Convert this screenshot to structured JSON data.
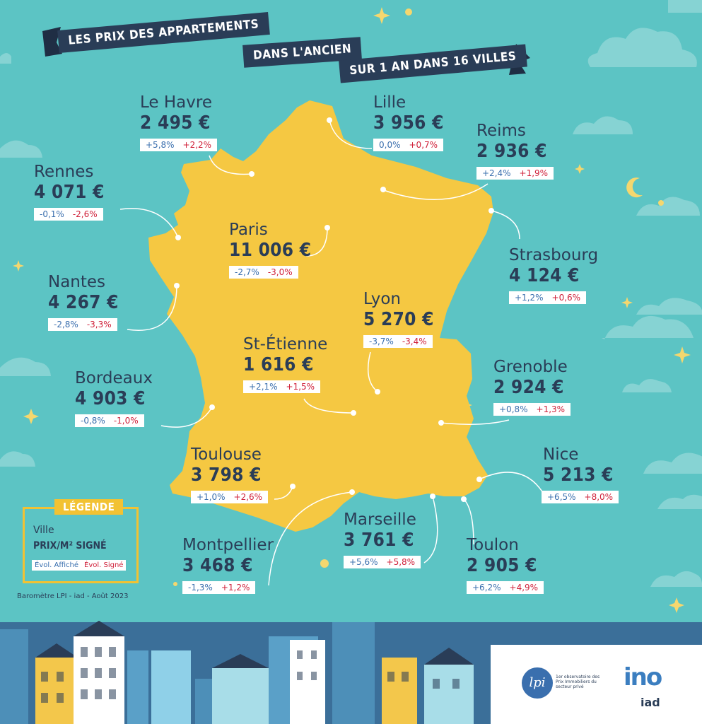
{
  "title": {
    "line1": "LES PRIX DES APPARTEMENTS",
    "line2": "DANS L'ANCIEN",
    "line3": "SUR 1 AN DANS 16 VILLES"
  },
  "cities": [
    {
      "name": "Le Havre",
      "price": "2 495 €",
      "evol_affiche": "+5,8%",
      "evol_signe": "+2,2%"
    },
    {
      "name": "Lille",
      "price": "3 956 €",
      "evol_affiche": "0,0%",
      "evol_signe": "+0,7%"
    },
    {
      "name": "Reims",
      "price": "2 936 €",
      "evol_affiche": "+2,4%",
      "evol_signe": "+1,9%"
    },
    {
      "name": "Rennes",
      "price": "4 071 €",
      "evol_affiche": "-0,1%",
      "evol_signe": "-2,6%"
    },
    {
      "name": "Paris",
      "price": "11 006 €",
      "evol_affiche": "-2,7%",
      "evol_signe": "-3,0%"
    },
    {
      "name": "Strasbourg",
      "price": "4 124 €",
      "evol_affiche": "+1,2%",
      "evol_signe": "+0,6%"
    },
    {
      "name": "Nantes",
      "price": "4 267 €",
      "evol_affiche": "-2,8%",
      "evol_signe": "-3,3%"
    },
    {
      "name": "Lyon",
      "price": "5 270 €",
      "evol_affiche": "-3,7%",
      "evol_signe": "-3,4%"
    },
    {
      "name": "St-Étienne",
      "price": "1 616 €",
      "evol_affiche": "+2,1%",
      "evol_signe": "+1,5%"
    },
    {
      "name": "Bordeaux",
      "price": "4 903 €",
      "evol_affiche": "-0,8%",
      "evol_signe": "-1,0%"
    },
    {
      "name": "Grenoble",
      "price": "2 924 €",
      "evol_affiche": "+0,8%",
      "evol_signe": "+1,3%"
    },
    {
      "name": "Toulouse",
      "price": "3 798 €",
      "evol_affiche": "+1,0%",
      "evol_signe": "+2,6%"
    },
    {
      "name": "Nice",
      "price": "5 213 €",
      "evol_affiche": "+6,5%",
      "evol_signe": "+8,0%"
    },
    {
      "name": "Marseille",
      "price": "3 761 €",
      "evol_affiche": "+5,6%",
      "evol_signe": "+5,8%"
    },
    {
      "name": "Montpellier",
      "price": "3 468 €",
      "evol_affiche": "-1,3%",
      "evol_signe": "+1,2%"
    },
    {
      "name": "Toulon",
      "price": "2 905 €",
      "evol_affiche": "+6,2%",
      "evol_signe": "+4,9%"
    }
  ],
  "legend": {
    "title": "LÉGENDE",
    "ville": "Ville",
    "prix": "PRIX/M² SIGNÉ",
    "evol_affiche": "Évol. Affiché",
    "evol_signe": "Évol. Signé"
  },
  "source": "Baromètre LPI - iad - Août 2023",
  "logos": {
    "lpi_mark": "lpi",
    "lpi_text": "1er observatoire des Prix Immobiliers du secteur privé",
    "iad_mark": "ino",
    "iad_text": "iad"
  },
  "colors": {
    "background": "#5cc4c4",
    "map": "#f5c842",
    "navy": "#2a3d57",
    "evol_affiche": "#3a6fae",
    "evol_signe": "#d0213a",
    "legend_border": "#f2c233"
  }
}
